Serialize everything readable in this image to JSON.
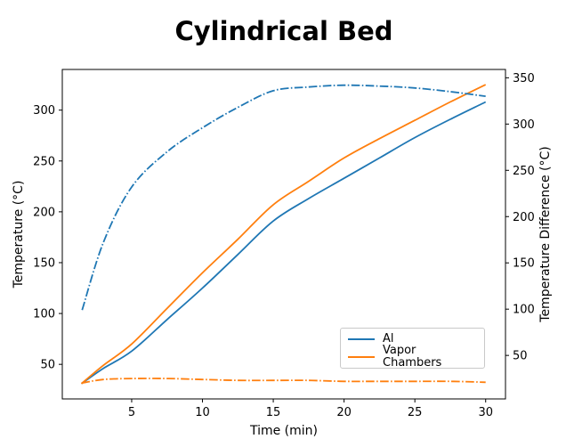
{
  "title": "Cylindrical Bed",
  "chart_data": {
    "type": "line",
    "title": "Cylindrical Bed",
    "xlabel": "Time (min)",
    "ylabel_left": "Temperature (°C)",
    "ylabel_right": "Temperature Difference (°C)",
    "x_ticks": [
      5,
      10,
      15,
      20,
      25,
      30
    ],
    "y_left_ticks": [
      50,
      100,
      150,
      200,
      250,
      300
    ],
    "y_right_ticks": [
      50,
      100,
      150,
      200,
      250,
      300,
      350
    ],
    "xlim": [
      0.1,
      31.4
    ],
    "ylim_left": [
      16,
      340
    ],
    "ylim_right": [
      3,
      359
    ],
    "grid": false,
    "legend_position": "lower right inside",
    "series": [
      {
        "name": "Al",
        "axis": "left",
        "style": "solid",
        "color": "#1f77b4",
        "x": [
          1.45,
          3,
          5,
          7.5,
          10,
          12.5,
          15,
          17.5,
          20,
          22.5,
          25,
          27.5,
          30
        ],
        "y": [
          31,
          46,
          63,
          94,
          125,
          158,
          191,
          213,
          233,
          253,
          273,
          291,
          308
        ]
      },
      {
        "name": "Vapor Chambers",
        "axis": "left",
        "style": "solid",
        "color": "#ff7f0e",
        "x": [
          1.45,
          3,
          5,
          7.5,
          10,
          12.5,
          15,
          17.5,
          20,
          22.5,
          25,
          27.5,
          30
        ],
        "y": [
          31,
          49,
          70,
          105,
          140,
          173,
          207,
          230,
          253,
          272,
          290,
          308,
          325
        ]
      },
      {
        "name": "Al",
        "axis": "right",
        "style": "dashdot",
        "color": "#1f77b4",
        "x": [
          1.5,
          3,
          5,
          7.5,
          10,
          12.5,
          15,
          17.5,
          20,
          22.5,
          25,
          27.5,
          30
        ],
        "y": [
          99,
          172,
          232,
          270,
          296,
          318,
          336,
          340,
          342,
          341,
          339,
          335,
          330
        ]
      },
      {
        "name": "Vapor Chambers",
        "axis": "right",
        "style": "dashdot",
        "color": "#ff7f0e",
        "x": [
          1.45,
          3,
          5,
          7.5,
          10,
          12.5,
          15,
          17.5,
          20,
          22.5,
          25,
          27.5,
          30
        ],
        "y": [
          20,
          24,
          25,
          25,
          24,
          23,
          23,
          23,
          22,
          22,
          22,
          22,
          21
        ]
      }
    ]
  },
  "legend": {
    "entries": [
      {
        "label": "Al",
        "color": "#1f77b4",
        "style": "solid"
      },
      {
        "label": "Vapor Chambers",
        "color": "#ff7f0e",
        "style": "solid"
      }
    ]
  },
  "colors": {
    "blue": "#1f77b4",
    "orange": "#ff7f0e",
    "axis": "#000000",
    "legend_border": "#c9c9c9",
    "background": "#ffffff"
  }
}
